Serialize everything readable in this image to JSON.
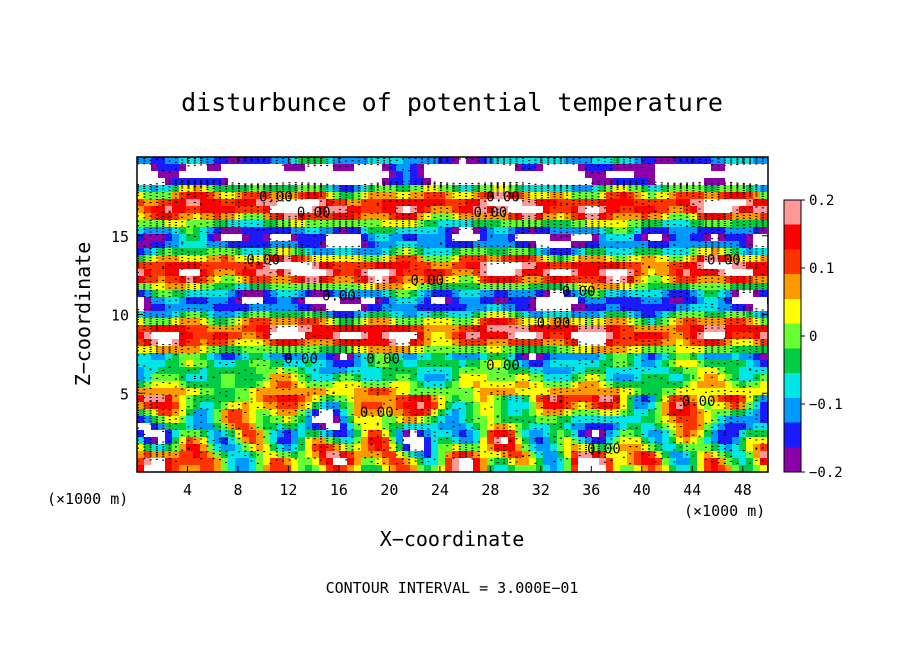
{
  "chart_data": {
    "type": "heatmap",
    "title": "disturbunce of potential temperature",
    "xlabel": "X−coordinate",
    "ylabel": "Z−coordinate",
    "x_unit_left": "(×1000 m)",
    "x_unit_right": "(×1000 m)",
    "footer": "CONTOUR INTERVAL = 3.000E−01",
    "xlim": [
      0,
      50
    ],
    "ylim": [
      0,
      20
    ],
    "x_ticks": [
      4,
      8,
      12,
      16,
      20,
      24,
      28,
      32,
      36,
      40,
      44,
      48
    ],
    "y_ticks": [
      5,
      10,
      15
    ],
    "colorbar": {
      "range": [
        -0.2,
        0.2
      ],
      "tick_labels": [
        "0.2",
        "0.1",
        "0",
        "−0.1",
        "−0.2"
      ],
      "tick_values": [
        0.2,
        0.1,
        0,
        -0.1,
        -0.2
      ],
      "colors": [
        "#8b00a8",
        "#1a1aff",
        "#0099ff",
        "#00e6e6",
        "#00cc44",
        "#66ff33",
        "#ffff00",
        "#ff9900",
        "#ff3300",
        "#ff0000",
        "#ff9999"
      ]
    },
    "contour_labels": [
      {
        "text": "0.00",
        "x": 11,
        "z": 17.5
      },
      {
        "text": "0.00",
        "x": 14,
        "z": 16.5
      },
      {
        "text": "0.00",
        "x": 29,
        "z": 17.5
      },
      {
        "text": "0.00",
        "x": 28,
        "z": 16.5
      },
      {
        "text": "0.00",
        "x": 10,
        "z": 13.5
      },
      {
        "text": "0.00",
        "x": 46.5,
        "z": 13.5
      },
      {
        "text": "0.00",
        "x": 23,
        "z": 12.2
      },
      {
        "text": "0.00",
        "x": 16,
        "z": 11.2
      },
      {
        "text": "0.00",
        "x": 35,
        "z": 11.5
      },
      {
        "text": "0.00",
        "x": 33,
        "z": 9.5
      },
      {
        "text": "0.00",
        "x": 13,
        "z": 7.2
      },
      {
        "text": "0.00",
        "x": 19.5,
        "z": 7.2
      },
      {
        "text": "0.00",
        "x": 29,
        "z": 6.8
      },
      {
        "text": "0.00",
        "x": 19,
        "z": 3.8
      },
      {
        "text": "0.00",
        "x": 37,
        "z": 1.5
      },
      {
        "text": "0.00",
        "x": 44.5,
        "z": 4.5
      }
    ]
  }
}
